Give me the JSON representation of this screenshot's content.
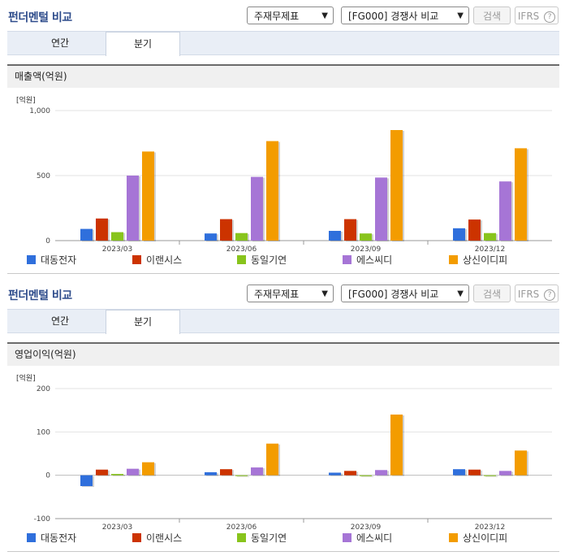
{
  "panels": [
    {
      "title": "펀더멘털 비교",
      "select1": "주재무제표",
      "select2": "[FG000] 경쟁사 비교",
      "search_label": "검색",
      "ifrs_label": "IFRS",
      "ifrs_help": "?",
      "tabs": [
        "연간",
        "분기"
      ],
      "active_tab": "분기",
      "subheader": "매출액(억원)"
    },
    {
      "title": "펀더멘털 비교",
      "select1": "주재무제표",
      "select2": "[FG000] 경쟁사 비교",
      "search_label": "검색",
      "ifrs_label": "IFRS",
      "ifrs_help": "?",
      "tabs": [
        "연간",
        "분기"
      ],
      "active_tab": "분기",
      "subheader": "영업이익(억원)"
    }
  ],
  "colors": {
    "series": [
      "#2f6fdc",
      "#cc3300",
      "#88c41c",
      "#a675d6",
      "#f39c00"
    ]
  },
  "chart_data": [
    {
      "type": "bar",
      "unit_label": "[억원]",
      "categories": [
        "2023/03",
        "2023/06",
        "2023/09",
        "2023/12"
      ],
      "ylim": [
        0,
        1000
      ],
      "yticks": [
        0,
        500,
        1000
      ],
      "ytick_labels": [
        "0",
        "500",
        "1,000"
      ],
      "grid": true,
      "legend_position": "bottom",
      "series": [
        {
          "name": "대동전자",
          "values": [
            90,
            55,
            75,
            95
          ]
        },
        {
          "name": "이랜시스",
          "values": [
            170,
            165,
            165,
            162
          ]
        },
        {
          "name": "동일기연",
          "values": [
            65,
            58,
            55,
            58
          ]
        },
        {
          "name": "에스씨디",
          "values": [
            500,
            490,
            485,
            455
          ]
        },
        {
          "name": "상신이디피",
          "values": [
            685,
            765,
            850,
            710
          ]
        }
      ]
    },
    {
      "type": "bar",
      "unit_label": "[억원]",
      "categories": [
        "2023/03",
        "2023/06",
        "2023/09",
        "2023/12"
      ],
      "ylim": [
        -100,
        200
      ],
      "yticks": [
        -100,
        0,
        100,
        200
      ],
      "ytick_labels": [
        "-100",
        "0",
        "100",
        "200"
      ],
      "grid": true,
      "legend_position": "bottom",
      "series": [
        {
          "name": "대동전자",
          "values": [
            -25,
            7,
            6,
            14
          ]
        },
        {
          "name": "이랜시스",
          "values": [
            13,
            14,
            10,
            13
          ]
        },
        {
          "name": "동일기연",
          "values": [
            3,
            0,
            -2,
            0
          ]
        },
        {
          "name": "에스씨디",
          "values": [
            15,
            18,
            12,
            10
          ]
        },
        {
          "name": "상신이디피",
          "values": [
            30,
            73,
            140,
            57
          ]
        }
      ]
    }
  ]
}
